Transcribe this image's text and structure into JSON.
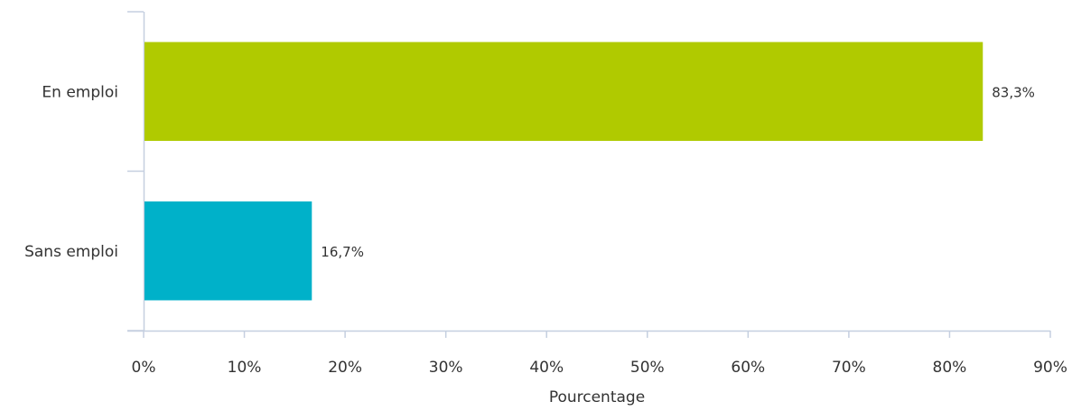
{
  "chart_data": {
    "type": "bar",
    "orientation": "horizontal",
    "categories": [
      "En emploi",
      "Sans emploi"
    ],
    "values": [
      83.3,
      16.7
    ],
    "data_labels": [
      "83,3%",
      "16,7%"
    ],
    "colors": [
      "#b0ca00",
      "#00b1c9"
    ],
    "xlabel": "Pourcentage",
    "ylabel": "",
    "xlim": [
      0,
      90
    ],
    "x_ticks": [
      0,
      10,
      20,
      30,
      40,
      50,
      60,
      70,
      80,
      90
    ],
    "x_tick_labels": [
      "0%",
      "10%",
      "20%",
      "30%",
      "40%",
      "50%",
      "60%",
      "70%",
      "80%",
      "90%"
    ],
    "grid": false,
    "axis_color": "#c5cfe0"
  }
}
